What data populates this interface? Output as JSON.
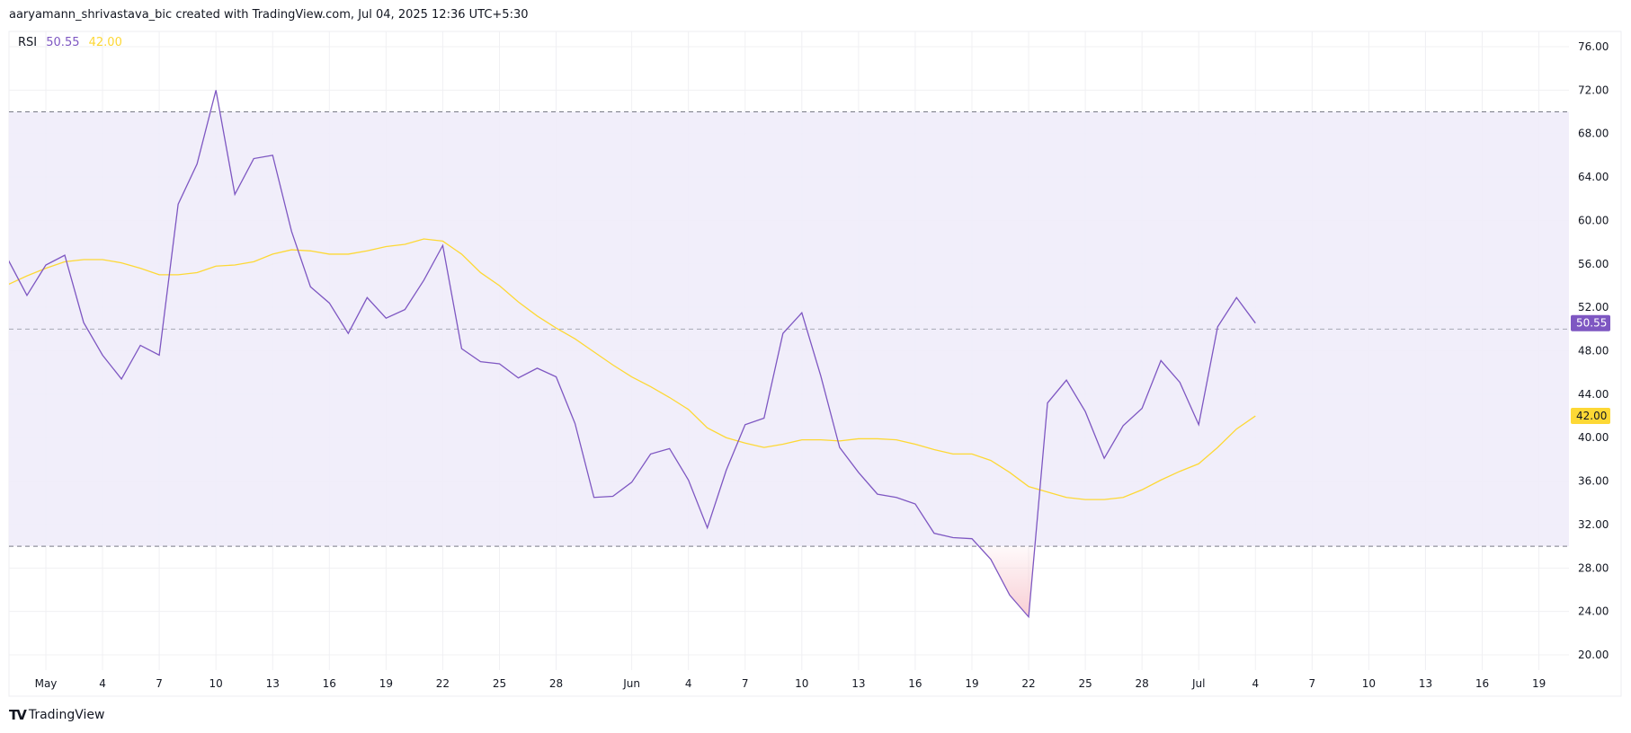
{
  "header": {
    "text": "aaryamann_shrivastava_bic created with TradingView.com, Jul 04, 2025 12:36 UTC+5:30"
  },
  "legend": {
    "name": "RSI",
    "rsi_value": "50.55",
    "ma_value": "42.00"
  },
  "footer": {
    "brand": "TradingView",
    "logo_icon": "tradingview-logo-icon"
  },
  "colors": {
    "rsi": "#7e57c2",
    "ma": "#fdd835",
    "band": "#f0ecf9",
    "oversold_fill": "#f8c9d0",
    "grid": "#f0f0f3",
    "level": "#787b86"
  },
  "chart_data": {
    "type": "line",
    "title": "",
    "ylim": [
      18,
      78
    ],
    "y_ticks": [
      "76.00",
      "72.00",
      "68.00",
      "64.00",
      "60.00",
      "56.00",
      "52.00",
      "48.00",
      "44.00",
      "40.00",
      "36.00",
      "32.00",
      "28.00",
      "24.00",
      "20.00"
    ],
    "x_ticks": [
      {
        "label": "May",
        "date": "05-01"
      },
      {
        "label": "4",
        "date": "05-04"
      },
      {
        "label": "7",
        "date": "05-07"
      },
      {
        "label": "10",
        "date": "05-10"
      },
      {
        "label": "13",
        "date": "05-13"
      },
      {
        "label": "16",
        "date": "05-16"
      },
      {
        "label": "19",
        "date": "05-19"
      },
      {
        "label": "22",
        "date": "05-22"
      },
      {
        "label": "25",
        "date": "05-25"
      },
      {
        "label": "28",
        "date": "05-28"
      },
      {
        "label": "Jun",
        "date": "06-01"
      },
      {
        "label": "4",
        "date": "06-04"
      },
      {
        "label": "7",
        "date": "06-07"
      },
      {
        "label": "10",
        "date": "06-10"
      },
      {
        "label": "13",
        "date": "06-13"
      },
      {
        "label": "16",
        "date": "06-16"
      },
      {
        "label": "19",
        "date": "06-19"
      },
      {
        "label": "22",
        "date": "06-22"
      },
      {
        "label": "25",
        "date": "06-25"
      },
      {
        "label": "28",
        "date": "06-28"
      },
      {
        "label": "Jul",
        "date": "07-01"
      },
      {
        "label": "4",
        "date": "07-04"
      },
      {
        "label": "7",
        "date": "07-07"
      },
      {
        "label": "10",
        "date": "07-10"
      },
      {
        "label": "13",
        "date": "07-13"
      },
      {
        "label": "16",
        "date": "07-16"
      },
      {
        "label": "19",
        "date": "07-19"
      }
    ],
    "levels": [
      70,
      50,
      30
    ],
    "band": [
      30,
      70
    ],
    "x_start": "04-29",
    "series": [
      {
        "name": "RSI",
        "last_label": "50.55",
        "values": [
          56.4,
          53.1,
          55.9,
          56.8,
          50.6,
          47.6,
          45.4,
          48.5,
          47.6,
          61.5,
          65.2,
          72.0,
          62.4,
          65.7,
          66.0,
          59.0,
          53.9,
          52.4,
          49.6,
          52.9,
          51.0,
          51.8,
          54.5,
          57.7,
          48.2,
          47.0,
          46.8,
          45.5,
          46.4,
          45.6,
          41.3,
          34.5,
          34.6,
          35.9,
          38.5,
          39.0,
          36.1,
          31.7,
          37.0,
          41.2,
          41.8,
          49.6,
          51.5,
          45.7,
          39.1,
          36.8,
          34.8,
          34.5,
          33.9,
          31.2,
          30.8,
          30.7,
          28.8,
          25.5,
          23.5,
          43.2,
          45.3,
          42.4,
          38.1,
          41.1,
          42.7,
          47.1,
          45.1,
          41.2,
          50.2,
          52.9,
          50.55
        ]
      },
      {
        "name": "RSI-based MA",
        "last_label": "42.00",
        "values": [
          54.1,
          54.9,
          55.6,
          56.2,
          56.4,
          56.4,
          56.1,
          55.6,
          55.0,
          55.0,
          55.2,
          55.8,
          55.9,
          56.2,
          56.9,
          57.3,
          57.2,
          56.9,
          56.9,
          57.2,
          57.6,
          57.8,
          58.3,
          58.1,
          56.9,
          55.2,
          54.0,
          52.5,
          51.2,
          50.1,
          49.1,
          47.9,
          46.7,
          45.6,
          44.7,
          43.7,
          42.6,
          40.9,
          40.0,
          39.5,
          39.1,
          39.4,
          39.8,
          39.8,
          39.7,
          39.9,
          39.9,
          39.8,
          39.4,
          38.9,
          38.5,
          38.5,
          37.9,
          36.8,
          35.5,
          35.0,
          34.5,
          34.3,
          34.3,
          34.5,
          35.2,
          36.1,
          36.9,
          37.6,
          39.1,
          40.8,
          42.0
        ]
      }
    ]
  }
}
